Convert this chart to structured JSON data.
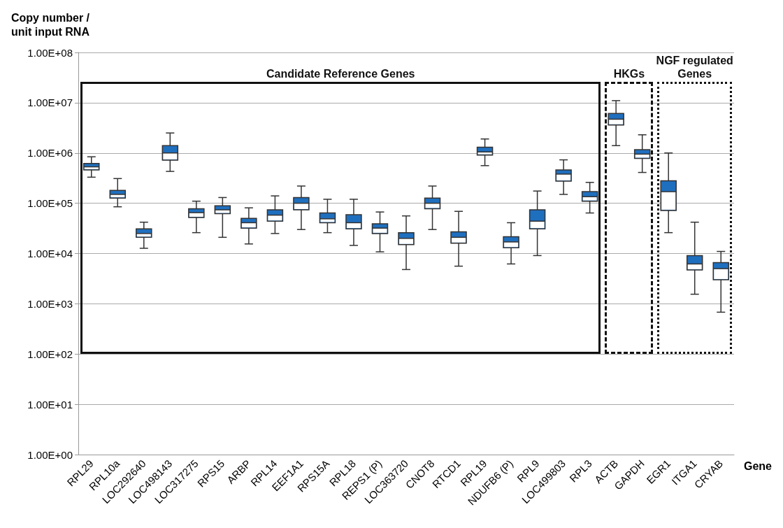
{
  "chart_data": {
    "type": "box",
    "ylabel": "Copy number /\nunit input RNA",
    "xlabel": "Gene",
    "log": "y",
    "grid": "y",
    "color": "#1f6fbf",
    "categories": [
      "RPL29",
      "RPL10a",
      "LOC292640",
      "LOC498143",
      "LOC317275",
      "RPS15",
      "ARBP",
      "RPL14",
      "EEF1A1",
      "RPS15A",
      "RPL18",
      "REPS1 (P)",
      "LOC363720",
      "CNOT8",
      "RTCD1",
      "RPL19",
      "NDUFB6 (P)",
      "RPL9",
      "LOC499803",
      "RPL3",
      "ACTB",
      "GAPDH",
      "EGR1",
      "ITGA1",
      "CRYAB"
    ],
    "ylim": [
      1,
      100000000
    ],
    "yticks": [
      {
        "value": 1,
        "label": "1.00E+00"
      },
      {
        "value": 10,
        "label": "1.00E+01"
      },
      {
        "value": 100,
        "label": "1.00E+02"
      },
      {
        "value": 1000,
        "label": "1.00E+03"
      },
      {
        "value": 10000,
        "label": "1.00E+04"
      },
      {
        "value": 100000,
        "label": "1.00E+05"
      },
      {
        "value": 1000000,
        "label": "1.00E+06"
      },
      {
        "value": 10000000,
        "label": "1.00E+07"
      },
      {
        "value": 100000000,
        "label": "1.00E+08"
      }
    ],
    "boxes": [
      {
        "low": 330000,
        "q1": 460000,
        "median": 530000,
        "q3": 620000,
        "high": 840000
      },
      {
        "low": 85000,
        "q1": 127000,
        "median": 150000,
        "q3": 180000,
        "high": 310000
      },
      {
        "low": 12700,
        "q1": 21000,
        "median": 25000,
        "q3": 31000,
        "high": 42000
      },
      {
        "low": 430000,
        "q1": 720000,
        "median": 1000000,
        "q3": 1400000,
        "high": 2500000
      },
      {
        "low": 26000,
        "q1": 52000,
        "median": 65000,
        "q3": 78000,
        "high": 110000
      },
      {
        "low": 21000,
        "q1": 62000,
        "median": 74000,
        "q3": 89000,
        "high": 130000
      },
      {
        "low": 15500,
        "q1": 32000,
        "median": 41000,
        "q3": 50000,
        "high": 81000
      },
      {
        "low": 25000,
        "q1": 44000,
        "median": 58000,
        "q3": 74000,
        "high": 140000
      },
      {
        "low": 30000,
        "q1": 74000,
        "median": 100000,
        "q3": 130000,
        "high": 220000
      },
      {
        "low": 26000,
        "q1": 41000,
        "median": 49000,
        "q3": 64000,
        "high": 120000
      },
      {
        "low": 14500,
        "q1": 31000,
        "median": 41000,
        "q3": 59000,
        "high": 120000
      },
      {
        "low": 10800,
        "q1": 25000,
        "median": 32000,
        "q3": 39000,
        "high": 67000
      },
      {
        "low": 4800,
        "q1": 15000,
        "median": 20000,
        "q3": 26000,
        "high": 56000
      },
      {
        "low": 30000,
        "q1": 78000,
        "median": 100000,
        "q3": 127000,
        "high": 220000
      },
      {
        "low": 5600,
        "q1": 16000,
        "median": 21000,
        "q3": 27000,
        "high": 69000
      },
      {
        "low": 560000,
        "q1": 910000,
        "median": 1050000,
        "q3": 1300000,
        "high": 1900000
      },
      {
        "low": 6200,
        "q1": 13000,
        "median": 17000,
        "q3": 21500,
        "high": 41000
      },
      {
        "low": 9100,
        "q1": 31000,
        "median": 44000,
        "q3": 74000,
        "high": 175000
      },
      {
        "low": 150000,
        "q1": 275000,
        "median": 380000,
        "q3": 460000,
        "high": 730000
      },
      {
        "low": 64000,
        "q1": 110000,
        "median": 135000,
        "q3": 170000,
        "high": 260000
      },
      {
        "low": 1400000,
        "q1": 3600000,
        "median": 4700000,
        "q3": 6100000,
        "high": 11000000
      },
      {
        "low": 410000,
        "q1": 780000,
        "median": 950000,
        "q3": 1160000,
        "high": 2300000
      },
      {
        "low": 26000,
        "q1": 72000,
        "median": 170000,
        "q3": 280000,
        "high": 1000000
      },
      {
        "low": 1550,
        "q1": 4700,
        "median": 6200,
        "q3": 9100,
        "high": 42000
      },
      {
        "low": 680,
        "q1": 3000,
        "median": 5000,
        "q3": 6600,
        "high": 11000
      }
    ],
    "annotations": [
      "Candidate Reference Genes",
      "HKGs",
      "NGF regulated Genes"
    ]
  }
}
